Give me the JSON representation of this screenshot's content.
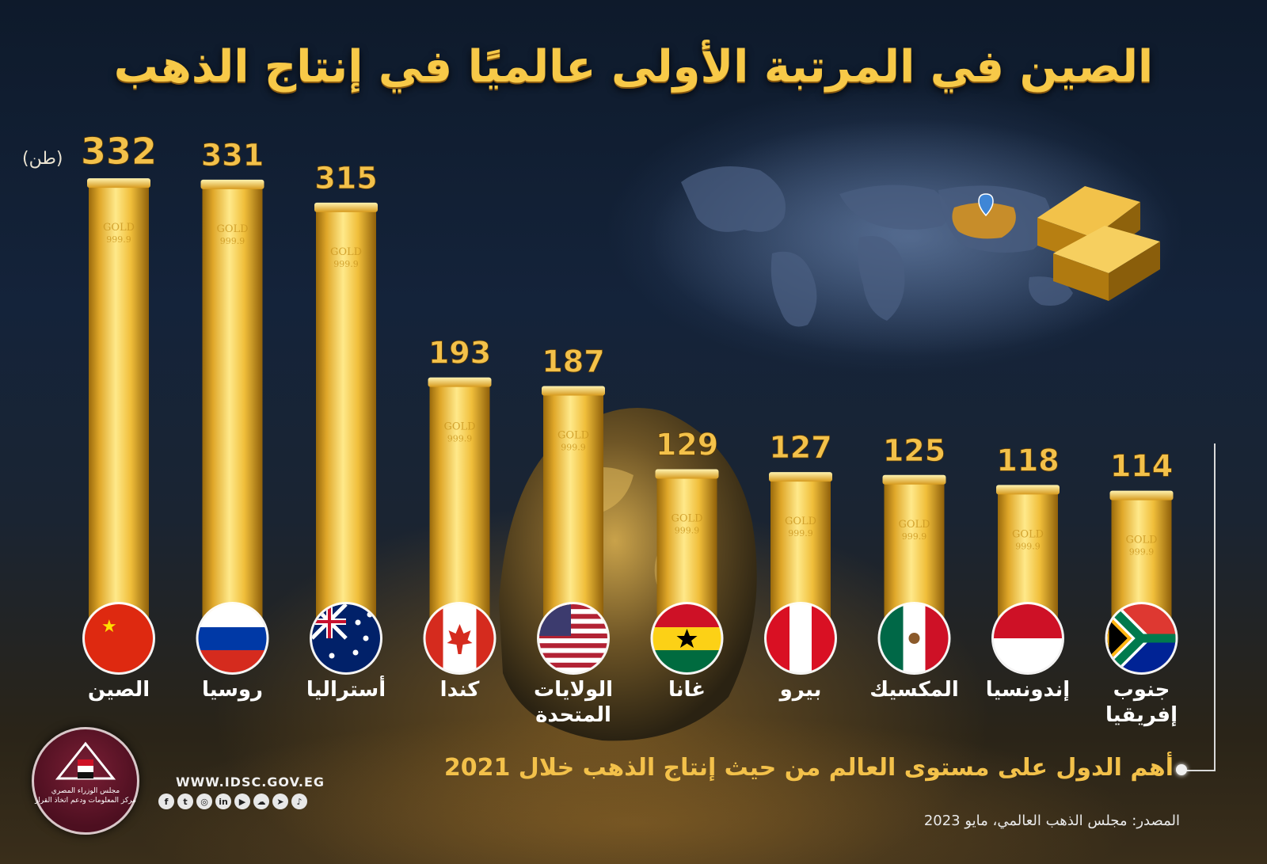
{
  "title": "الصين في المرتبة الأولى عالميًا في إنتاج الذهب",
  "unit_label": "(طن)",
  "bar_stamp": {
    "line1": "GOLD",
    "line2": "999.9"
  },
  "subtitle": "أهم الدول على مستوى العالم من حيث إنتاج الذهب خلال 2021",
  "source": "المصدر: مجلس الذهب العالمي، مايو 2023",
  "footer": {
    "website": "WWW.IDSC.GOV.EG",
    "logo_text_line1": "مجلس الوزراء المصري",
    "logo_text_line2": "مركز المعلومات ودعم اتخاذ القرار",
    "social_icons": [
      "facebook-icon",
      "twitter-icon",
      "instagram-icon",
      "linkedin-icon",
      "youtube-icon",
      "soundcloud-icon",
      "telegram-icon",
      "tiktok-icon"
    ]
  },
  "colors": {
    "gold": "#f3c14a",
    "bar_light": "#ffe98a",
    "bar_dark": "#b07a10",
    "background": "#0e1a2b"
  },
  "chart_data": {
    "type": "bar",
    "categories": [
      "الصين",
      "روسيا",
      "أستراليا",
      "كندا",
      "الولايات المتحدة",
      "غانا",
      "بيرو",
      "المكسيك",
      "إندونسيا",
      "جنوب إفريقيا"
    ],
    "category_lines": [
      [
        "الصين"
      ],
      [
        "روسيا"
      ],
      [
        "أستراليا"
      ],
      [
        "كندا"
      ],
      [
        "الولايات",
        "المتحدة"
      ],
      [
        "غانا"
      ],
      [
        "بيرو"
      ],
      [
        "المكسيك"
      ],
      [
        "إندونسيا"
      ],
      [
        "جنوب",
        "إفريقيا"
      ]
    ],
    "values": [
      332,
      331,
      315,
      193,
      187,
      129,
      127,
      125,
      118,
      114
    ],
    "flags": [
      "china-flag-icon",
      "russia-flag-icon",
      "australia-flag-icon",
      "canada-flag-icon",
      "usa-flag-icon",
      "ghana-flag-icon",
      "peru-flag-icon",
      "mexico-flag-icon",
      "indonesia-flag-icon",
      "south-africa-flag-icon"
    ],
    "ylabel": "(طن)",
    "grid": false
  }
}
